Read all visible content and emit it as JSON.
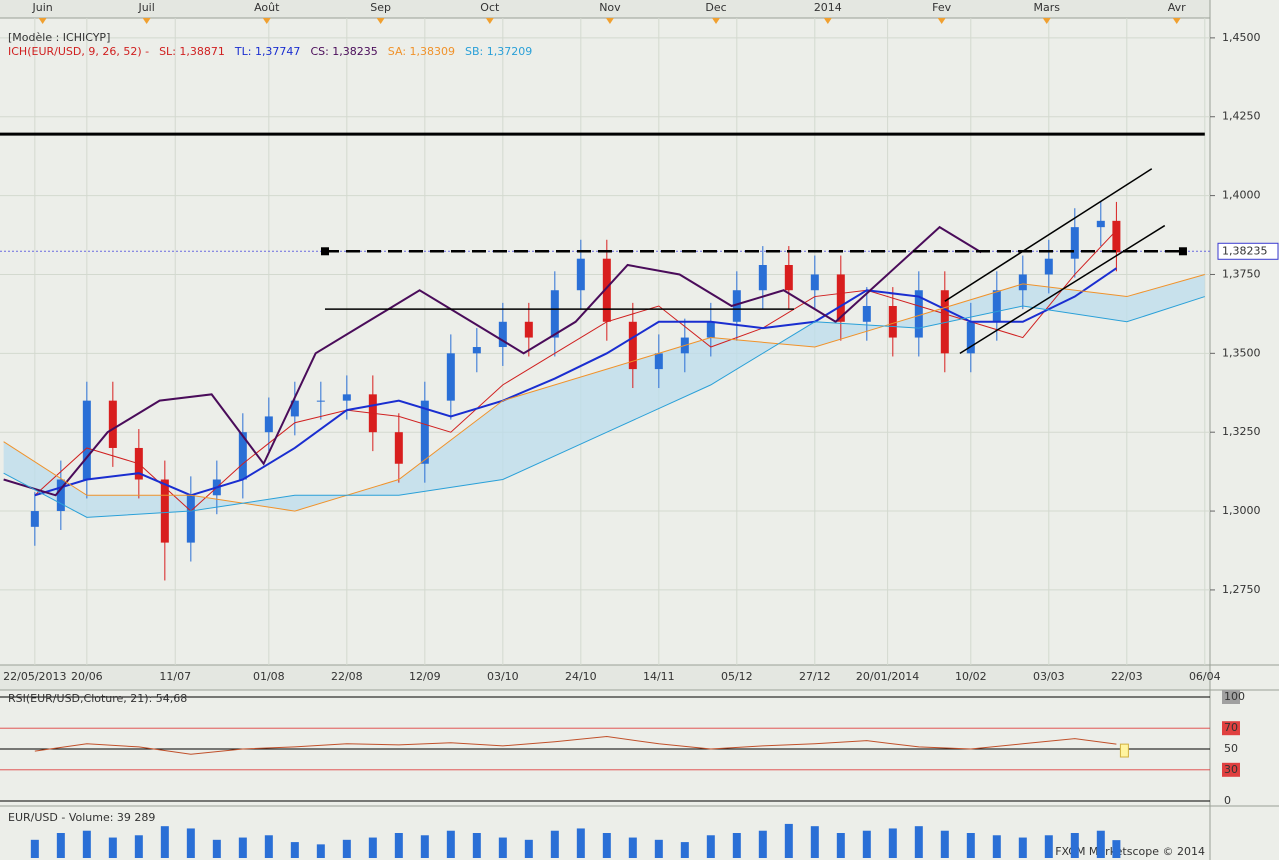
{
  "chart_data": [
    {
      "type": "candlestick",
      "title": "[Modèle : ICHICYP]",
      "indicator": "ICH(EUR/USD, 9, 26, 52) -",
      "indicator_color": "#d02020",
      "xlim": [
        -6.7,
        226
      ],
      "ylim": [
        1.2512,
        1.4563
      ],
      "yticks": [
        {
          "value": 1.275,
          "label": "1,2750"
        },
        {
          "value": 1.3,
          "label": "1,3000"
        },
        {
          "value": 1.325,
          "label": "1,3250"
        },
        {
          "value": 1.35,
          "label": "1,3500"
        },
        {
          "value": 1.375,
          "label": "1,3750"
        },
        {
          "value": 1.4,
          "label": "1,4000"
        },
        {
          "value": 1.425,
          "label": "1,4250"
        },
        {
          "value": 1.45,
          "label": "1,4500"
        }
      ],
      "xticks": [
        {
          "value": 0,
          "label": "22/05/2013"
        },
        {
          "value": 10,
          "label": "20/06"
        },
        {
          "value": 27,
          "label": "11/07"
        },
        {
          "value": 45,
          "label": "01/08"
        },
        {
          "value": 60,
          "label": "22/08"
        },
        {
          "value": 75,
          "label": "12/09"
        },
        {
          "value": 90,
          "label": "03/10"
        },
        {
          "value": 105,
          "label": "24/10"
        },
        {
          "value": 120,
          "label": "14/11"
        },
        {
          "value": 135,
          "label": "05/12"
        },
        {
          "value": 150,
          "label": "27/12"
        },
        {
          "value": 164,
          "label": "20/01/2014"
        },
        {
          "value": 180,
          "label": "10/02"
        },
        {
          "value": 195,
          "label": "03/03"
        },
        {
          "value": 210,
          "label": "22/03"
        },
        {
          "value": 225,
          "label": "06/04"
        }
      ],
      "top_ticks": [
        {
          "value": 1.5,
          "label": "Juin"
        },
        {
          "value": 21.5,
          "label": "Juil"
        },
        {
          "value": 44.6,
          "label": "Août"
        },
        {
          "value": 66.5,
          "label": "Sep"
        },
        {
          "value": 87.5,
          "label": "Oct"
        },
        {
          "value": 110.6,
          "label": "Nov"
        },
        {
          "value": 131,
          "label": "Dec"
        },
        {
          "value": 152.5,
          "label": "2014"
        },
        {
          "value": 174.4,
          "label": "Fev"
        },
        {
          "value": 194.6,
          "label": "Mars"
        },
        {
          "value": 219.6,
          "label": "Avr"
        }
      ],
      "grid": true,
      "up_color": "#2a6fd6",
      "down_color": "#d81e1e",
      "candles": {
        "x": [
          0,
          5,
          10,
          15,
          20,
          25,
          30,
          35,
          40,
          45,
          50,
          55,
          60,
          65,
          70,
          75,
          80,
          85,
          90,
          95,
          100,
          105,
          110,
          115,
          120,
          125,
          130,
          135,
          140,
          145,
          150,
          155,
          160,
          165,
          170,
          175,
          180,
          185,
          190,
          195,
          200,
          205,
          208
        ],
        "open": [
          1.295,
          1.3,
          1.31,
          1.335,
          1.32,
          1.31,
          1.29,
          1.305,
          1.31,
          1.325,
          1.33,
          1.335,
          1.335,
          1.337,
          1.325,
          1.315,
          1.335,
          1.35,
          1.352,
          1.36,
          1.355,
          1.37,
          1.38,
          1.36,
          1.345,
          1.35,
          1.355,
          1.36,
          1.37,
          1.378,
          1.37,
          1.375,
          1.36,
          1.365,
          1.355,
          1.37,
          1.35,
          1.36,
          1.37,
          1.375,
          1.38,
          1.39,
          1.392
        ],
        "high": [
          1.306,
          1.316,
          1.341,
          1.341,
          1.326,
          1.316,
          1.311,
          1.316,
          1.331,
          1.336,
          1.341,
          1.341,
          1.343,
          1.343,
          1.331,
          1.341,
          1.356,
          1.358,
          1.366,
          1.366,
          1.376,
          1.386,
          1.386,
          1.366,
          1.356,
          1.361,
          1.366,
          1.376,
          1.384,
          1.384,
          1.381,
          1.381,
          1.371,
          1.371,
          1.376,
          1.376,
          1.366,
          1.376,
          1.381,
          1.386,
          1.396,
          1.398,
          1.398
        ],
        "low": [
          1.289,
          1.294,
          1.304,
          1.314,
          1.304,
          1.278,
          1.284,
          1.299,
          1.304,
          1.319,
          1.324,
          1.329,
          1.329,
          1.319,
          1.309,
          1.309,
          1.329,
          1.344,
          1.346,
          1.349,
          1.349,
          1.364,
          1.354,
          1.339,
          1.339,
          1.344,
          1.349,
          1.354,
          1.364,
          1.364,
          1.364,
          1.354,
          1.354,
          1.349,
          1.349,
          1.344,
          1.344,
          1.354,
          1.364,
          1.369,
          1.374,
          1.384,
          1.376
        ],
        "close": [
          1.3,
          1.31,
          1.335,
          1.32,
          1.31,
          1.29,
          1.305,
          1.31,
          1.325,
          1.33,
          1.335,
          1.335,
          1.337,
          1.325,
          1.315,
          1.335,
          1.35,
          1.352,
          1.36,
          1.355,
          1.37,
          1.38,
          1.36,
          1.345,
          1.35,
          1.355,
          1.36,
          1.37,
          1.378,
          1.37,
          1.375,
          1.36,
          1.365,
          1.355,
          1.37,
          1.35,
          1.36,
          1.37,
          1.375,
          1.38,
          1.39,
          1.392,
          1.382
        ]
      },
      "series": [
        {
          "name": "SL: 1,38871",
          "color": "#d02020",
          "width": 1,
          "x": [
            0,
            10,
            20,
            30,
            40,
            50,
            60,
            70,
            80,
            90,
            100,
            110,
            120,
            130,
            140,
            150,
            160,
            170,
            180,
            190,
            200,
            208
          ],
          "values": [
            1.305,
            1.32,
            1.315,
            1.3,
            1.315,
            1.328,
            1.332,
            1.33,
            1.325,
            1.34,
            1.35,
            1.36,
            1.365,
            1.352,
            1.358,
            1.368,
            1.37,
            1.365,
            1.36,
            1.355,
            1.375,
            1.389
          ]
        },
        {
          "name": "TL: 1,37747",
          "color": "#1a2ed0",
          "width": 2,
          "x": [
            0,
            10,
            20,
            30,
            40,
            50,
            60,
            70,
            80,
            90,
            100,
            110,
            120,
            130,
            140,
            150,
            160,
            170,
            180,
            190,
            200,
            208
          ],
          "values": [
            1.305,
            1.31,
            1.312,
            1.305,
            1.31,
            1.32,
            1.332,
            1.335,
            1.33,
            1.335,
            1.342,
            1.35,
            1.36,
            1.36,
            1.358,
            1.36,
            1.37,
            1.368,
            1.36,
            1.36,
            1.368,
            1.377
          ]
        },
        {
          "name": "CS: 1,38235",
          "color": "#4a0c5a",
          "width": 2,
          "x": [
            -6,
            4,
            14,
            24,
            34,
            44,
            54,
            64,
            74,
            84,
            94,
            104,
            114,
            124,
            134,
            144,
            154,
            164,
            174,
            182
          ],
          "values": [
            1.31,
            1.305,
            1.325,
            1.335,
            1.337,
            1.315,
            1.35,
            1.36,
            1.37,
            1.36,
            1.35,
            1.36,
            1.378,
            1.375,
            1.365,
            1.37,
            1.36,
            1.375,
            1.39,
            1.382
          ]
        },
        {
          "name": "SA: 1,38309",
          "color": "#f0922a",
          "width": 1,
          "x": [
            -6,
            10,
            30,
            50,
            70,
            90,
            110,
            130,
            150,
            170,
            190,
            210,
            225
          ],
          "values": [
            1.322,
            1.305,
            1.305,
            1.3,
            1.31,
            1.335,
            1.345,
            1.355,
            1.352,
            1.362,
            1.372,
            1.368,
            1.375
          ]
        },
        {
          "name": "SB: 1,37209",
          "color": "#2aa0d8",
          "width": 1,
          "x": [
            -6,
            10,
            30,
            50,
            70,
            90,
            110,
            130,
            150,
            170,
            190,
            210,
            225
          ],
          "values": [
            1.312,
            1.298,
            1.3,
            1.305,
            1.305,
            1.31,
            1.325,
            1.34,
            1.36,
            1.358,
            1.365,
            1.36,
            1.368
          ]
        }
      ],
      "cloud_color": "#bcdcec",
      "lines": [
        {
          "x": [
            -6.7,
            225
          ],
          "y": [
            1.4195,
            1.4195
          ],
          "style": "thick"
        },
        {
          "x": [
            55.8,
            220.8
          ],
          "y": [
            1.38235,
            1.38235
          ],
          "style": "dashed"
        },
        {
          "x": [
            55.8,
            146
          ],
          "y": [
            1.364,
            1.364
          ],
          "style": "solid"
        },
        {
          "x": [
            175,
            214.8
          ],
          "y": [
            1.3665,
            1.4085
          ],
          "style": "solid"
        },
        {
          "x": [
            177.9,
            217.3
          ],
          "y": [
            1.35,
            1.3905
          ],
          "style": "solid"
        }
      ],
      "last_price": {
        "value": 1.38235,
        "label": "1,38235"
      },
      "watermark": "FXCM Marketscope © 2014"
    },
    {
      "type": "line",
      "title": "RSI(EUR/USD,Cloture, 21): 54,68",
      "color": "#c0502a",
      "xlim": [
        -6.7,
        226
      ],
      "ylim": [
        0,
        100
      ],
      "yticks": [
        0,
        30,
        50,
        70,
        100
      ],
      "overbought": 70,
      "oversold": 30,
      "x": [
        0,
        10,
        20,
        30,
        40,
        50,
        60,
        70,
        80,
        90,
        100,
        110,
        120,
        130,
        140,
        150,
        160,
        170,
        180,
        190,
        200,
        208
      ],
      "values": [
        48,
        55,
        52,
        45,
        50,
        52,
        55,
        54,
        56,
        53,
        57,
        62,
        55,
        50,
        53,
        55,
        58,
        52,
        50,
        55,
        60,
        54.68
      ]
    },
    {
      "type": "bar",
      "title": "EUR/USD - Volume: 39 289",
      "color": "#2a6fd6",
      "xlim": [
        -6.7,
        226
      ],
      "ylim": [
        0,
        110000
      ],
      "x": [
        0,
        5,
        10,
        15,
        20,
        25,
        30,
        35,
        40,
        45,
        50,
        55,
        60,
        65,
        70,
        75,
        80,
        85,
        90,
        95,
        100,
        105,
        110,
        115,
        120,
        125,
        130,
        135,
        140,
        145,
        150,
        155,
        160,
        165,
        170,
        175,
        180,
        185,
        190,
        195,
        200,
        205,
        208
      ],
      "values": [
        40000,
        55000,
        60000,
        45000,
        50000,
        70000,
        65000,
        40000,
        45000,
        50000,
        35000,
        30000,
        40000,
        45000,
        55000,
        50000,
        60000,
        55000,
        45000,
        40000,
        60000,
        65000,
        55000,
        45000,
        40000,
        35000,
        50000,
        55000,
        60000,
        75000,
        70000,
        55000,
        60000,
        65000,
        70000,
        60000,
        55000,
        50000,
        45000,
        50000,
        55000,
        60000,
        39289
      ]
    }
  ]
}
